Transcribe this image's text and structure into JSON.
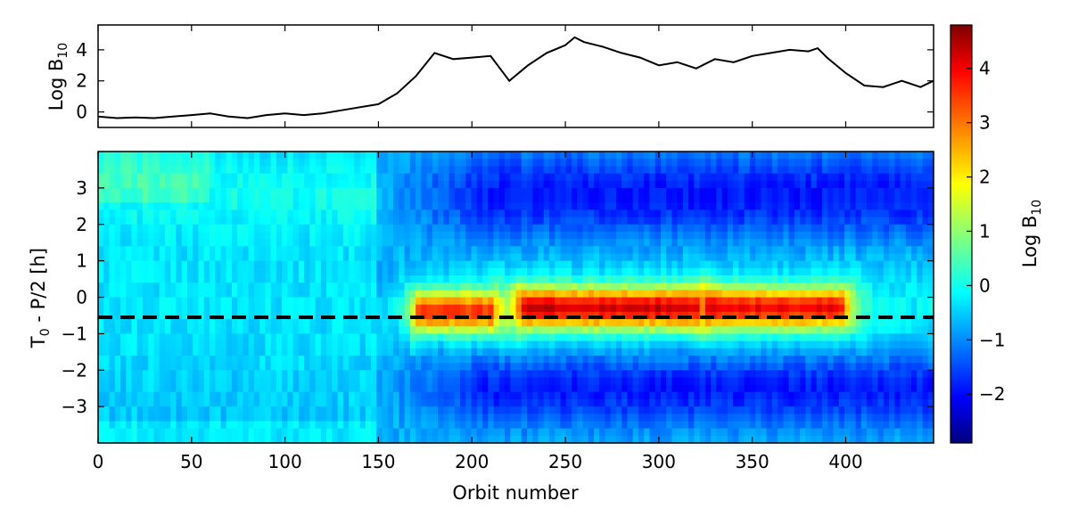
{
  "chart_data": [
    {
      "type": "line",
      "panel": "top",
      "ylabel": "Log B",
      "ylabel_sub": "10",
      "xlim": [
        0,
        447
      ],
      "ylim": [
        -1,
        5.6
      ],
      "yticks": [
        0,
        2,
        4
      ],
      "ytick_labels": [
        "0",
        "2",
        "4"
      ],
      "x": [
        0,
        10,
        20,
        30,
        40,
        50,
        60,
        70,
        80,
        90,
        100,
        110,
        120,
        130,
        140,
        150,
        160,
        170,
        180,
        190,
        200,
        210,
        220,
        230,
        240,
        250,
        255,
        260,
        270,
        280,
        290,
        300,
        310,
        320,
        330,
        340,
        350,
        360,
        370,
        380,
        385,
        390,
        400,
        410,
        420,
        430,
        440,
        447
      ],
      "y": [
        -0.3,
        -0.4,
        -0.35,
        -0.4,
        -0.3,
        -0.2,
        -0.1,
        -0.3,
        -0.4,
        -0.2,
        -0.1,
        -0.2,
        -0.1,
        0.1,
        0.3,
        0.5,
        1.2,
        2.3,
        3.8,
        3.4,
        3.5,
        3.6,
        2.0,
        3.0,
        3.8,
        4.3,
        4.8,
        4.5,
        4.2,
        3.8,
        3.5,
        3.0,
        3.2,
        2.8,
        3.4,
        3.2,
        3.6,
        3.8,
        4.0,
        3.9,
        4.1,
        3.5,
        2.5,
        1.7,
        1.6,
        2.0,
        1.6,
        2.0
      ]
    },
    {
      "type": "heatmap",
      "panel": "bottom",
      "xlabel": "Orbit number",
      "ylabel": "T",
      "ylabel_sub": "0",
      "ylabel_rest": " - P/2 [h]",
      "xlim": [
        0,
        447
      ],
      "ylim": [
        -4,
        4
      ],
      "xticks": [
        0,
        50,
        100,
        150,
        200,
        250,
        300,
        350,
        400
      ],
      "xtick_labels": [
        "0",
        "50",
        "100",
        "150",
        "200",
        "250",
        "300",
        "350",
        "400"
      ],
      "yticks": [
        3,
        2,
        1,
        0,
        -1,
        -2,
        -3
      ],
      "ytick_labels": [
        "3",
        "2",
        "1",
        "0",
        "−1",
        "−2",
        "−3"
      ],
      "dashed_line_y": -0.55,
      "colormap": "jet",
      "value_range": [
        -2.9,
        4.8
      ],
      "highlight_segments": [
        {
          "x_start": 170,
          "x_end": 212,
          "y_center": -0.4,
          "peak": 3.6
        },
        {
          "x_start": 225,
          "x_end": 322,
          "y_center": -0.3,
          "peak": 4.3
        },
        {
          "x_start": 325,
          "x_end": 400,
          "y_center": -0.3,
          "peak": 4.0
        }
      ]
    },
    {
      "type": "colorbar",
      "label": "Log B",
      "label_sub": "10",
      "range": [
        -2.9,
        4.8
      ],
      "ticks": [
        4,
        3,
        2,
        1,
        0,
        -1,
        -2
      ],
      "tick_labels": [
        "4",
        "3",
        "2",
        "1",
        "0",
        "−1",
        "−2"
      ]
    }
  ]
}
